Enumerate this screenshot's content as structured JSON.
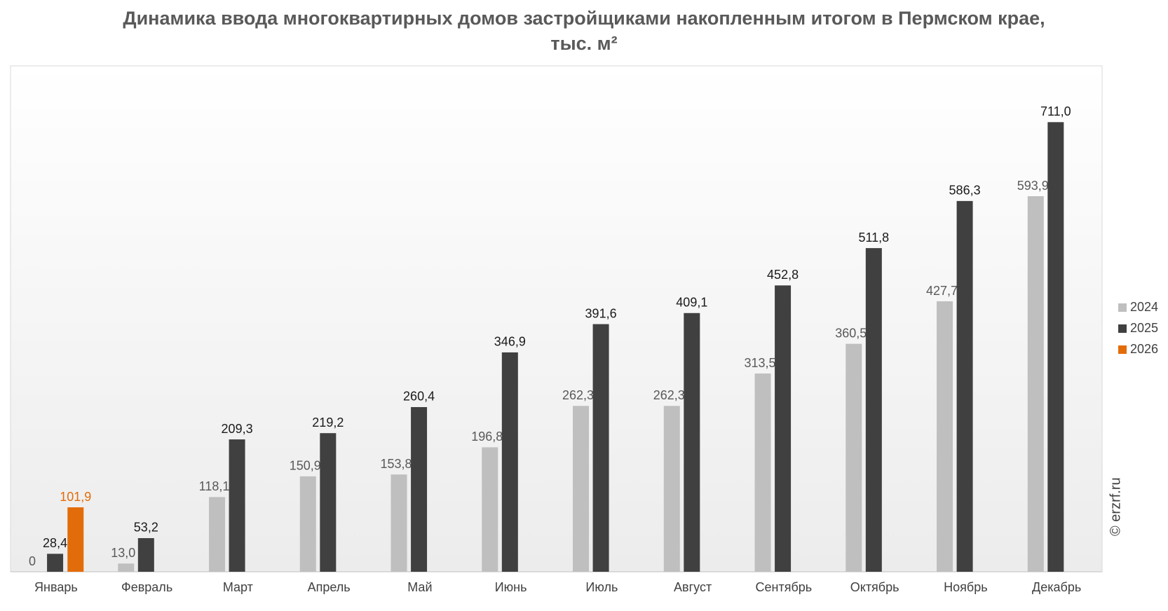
{
  "chart_data": {
    "type": "bar",
    "title": "Динамика ввода многоквартирных домов застройщиками накопленным итогом в Пермском крае, тыс. м²",
    "watermark": "© erzrf.ru",
    "categories": [
      "Январь",
      "Февраль",
      "Март",
      "Апрель",
      "Май",
      "Июнь",
      "Июль",
      "Август",
      "Сентябрь",
      "Октябрь",
      "Ноябрь",
      "Декабрь"
    ],
    "series": [
      {
        "name": "2024",
        "color": "#bfbfbf",
        "label_color": "#595959",
        "values": [
          0,
          13.0,
          118.1,
          150.9,
          153.8,
          196.8,
          262.3,
          262.3,
          313.5,
          360.5,
          427.7,
          593.9
        ],
        "value_labels": [
          "0",
          "13,0",
          "118,1",
          "150,9",
          "153,8",
          "196,8",
          "262,3",
          "262,3",
          "313,5",
          "360,5",
          "427,7",
          "593,9"
        ]
      },
      {
        "name": "2025",
        "color": "#404040",
        "label_color": "#1a1a1a",
        "values": [
          28.4,
          53.2,
          209.3,
          219.2,
          260.4,
          346.9,
          391.6,
          409.1,
          452.8,
          511.8,
          586.3,
          711.0
        ],
        "value_labels": [
          "28,4",
          "53,2",
          "209,3",
          "219,2",
          "260,4",
          "346,9",
          "391,6",
          "409,1",
          "452,8",
          "511,8",
          "586,3",
          "711,0"
        ]
      },
      {
        "name": "2026",
        "color": "#e36c0a",
        "label_color": "#e36c0a",
        "values": [
          101.9,
          null,
          null,
          null,
          null,
          null,
          null,
          null,
          null,
          null,
          null,
          null
        ],
        "value_labels": [
          "101,9",
          null,
          null,
          null,
          null,
          null,
          null,
          null,
          null,
          null,
          null,
          null
        ]
      }
    ],
    "ylim": [
      0,
      800
    ],
    "grid": false,
    "legend": "right"
  }
}
